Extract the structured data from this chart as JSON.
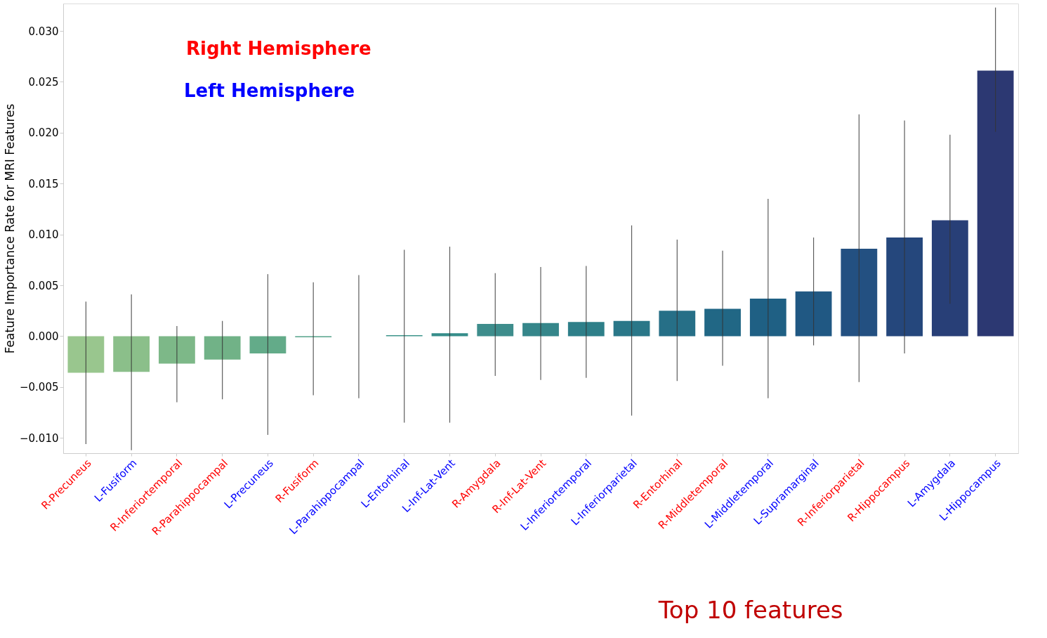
{
  "chart_data": {
    "type": "bar",
    "ylabel": "Feature Importance Rate for MRI Features",
    "categories": [
      "R-Precuneus",
      "L-Fusiform",
      "R-Inferiortemporal",
      "R-Parahippocampal",
      "L-Precuneus",
      "R-Fusiform",
      "L-Parahippocampal",
      "L-Entorhinal",
      "L-Inf-Lat-Vent",
      "R-Amygdala",
      "R-Inf-Lat-Vent",
      "L-Inferiortemporal",
      "L-Inferiorparietal",
      "R-Entorhinal",
      "R-Middletemporal",
      "L-Middletemporal",
      "L-Supramarginal",
      "R-Inferiorparietal",
      "R-Hippocampus",
      "L-Amygdala",
      "L-Hippocampus"
    ],
    "values": [
      -0.0036,
      -0.0035,
      -0.0027,
      -0.0023,
      -0.0017,
      -0.0001,
      0.0,
      0.0001,
      0.0003,
      0.0012,
      0.0013,
      0.0014,
      0.0015,
      0.0025,
      0.0027,
      0.0037,
      0.0044,
      0.0086,
      0.0097,
      0.0114,
      0.0261
    ],
    "colors": [
      "#99c68e",
      "#8bbf8a",
      "#7db888",
      "#71b287",
      "#63ab89",
      "#55a38a",
      "#cfe6e0",
      "#3f958b",
      "#368d8a",
      "#3e8d8c",
      "#35868a",
      "#2e7f89",
      "#2a7788",
      "#266f87",
      "#216785",
      "#1f6084",
      "#205883",
      "#235081",
      "#25477c",
      "#283f77",
      "#2c3872"
    ],
    "errors": [
      [
        -0.0106,
        0.0034
      ],
      [
        -0.0112,
        0.0041
      ],
      [
        -0.0065,
        0.001
      ],
      [
        -0.0062,
        0.0015
      ],
      [
        -0.0097,
        0.0061
      ],
      [
        -0.0058,
        0.0053
      ],
      [
        -0.0061,
        0.006
      ],
      [
        -0.0085,
        0.0085
      ],
      [
        -0.0085,
        0.0088
      ],
      [
        -0.0039,
        0.0062
      ],
      [
        -0.0043,
        0.0068
      ],
      [
        -0.0041,
        0.0069
      ],
      [
        -0.0078,
        0.0109
      ],
      [
        -0.0044,
        0.0095
      ],
      [
        -0.0029,
        0.0084
      ],
      [
        -0.0061,
        0.0135
      ],
      [
        -0.0009,
        0.0097
      ],
      [
        -0.0045,
        0.0218
      ],
      [
        -0.0017,
        0.0212
      ],
      [
        0.0032,
        0.0198
      ],
      [
        0.0201,
        0.0323
      ]
    ],
    "ylim": [
      -0.0115,
      0.0327
    ],
    "yticks": [
      {
        "value": -0.01,
        "label": "−0.010"
      },
      {
        "value": -0.005,
        "label": "−0.005"
      },
      {
        "value": 0,
        "label": "0.000"
      },
      {
        "value": 0.005,
        "label": "0.005"
      },
      {
        "value": 0.01,
        "label": "0.010"
      },
      {
        "value": 0.015,
        "label": "0.015"
      },
      {
        "value": 0.02,
        "label": "0.020"
      },
      {
        "value": 0.025,
        "label": "0.025"
      },
      {
        "value": 0.03,
        "label": "0.030"
      }
    ],
    "annotations": [
      "Right Hemisphere",
      "Left Hemisphere",
      "Top 10 features"
    ],
    "grid": false
  }
}
